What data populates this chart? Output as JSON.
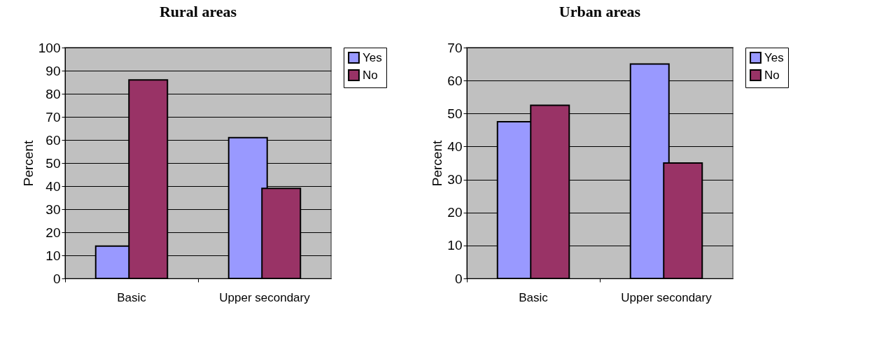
{
  "chart_data": [
    {
      "type": "bar",
      "title": "Rural areas",
      "ylabel": "Percent",
      "categories": [
        "Basic",
        "Upper secondary"
      ],
      "series": [
        {
          "name": "Yes",
          "color": "#9999ff",
          "values": [
            14,
            61
          ]
        },
        {
          "name": "No",
          "color": "#993366",
          "values": [
            86,
            39
          ]
        }
      ],
      "ylim": [
        0,
        100
      ],
      "yticks": [
        0,
        10,
        20,
        30,
        40,
        50,
        60,
        70,
        80,
        90,
        100
      ],
      "grid": "y",
      "legend": "right"
    },
    {
      "type": "bar",
      "title": "Urban areas",
      "ylabel": "Percent",
      "categories": [
        "Basic",
        "Upper secondary"
      ],
      "series": [
        {
          "name": "Yes",
          "color": "#9999ff",
          "values": [
            47.5,
            65
          ]
        },
        {
          "name": "No",
          "color": "#993366",
          "values": [
            52.5,
            35
          ]
        }
      ],
      "ylim": [
        0,
        70
      ],
      "yticks": [
        0,
        10,
        20,
        30,
        40,
        50,
        60,
        70
      ],
      "grid": "y",
      "legend": "right"
    }
  ]
}
